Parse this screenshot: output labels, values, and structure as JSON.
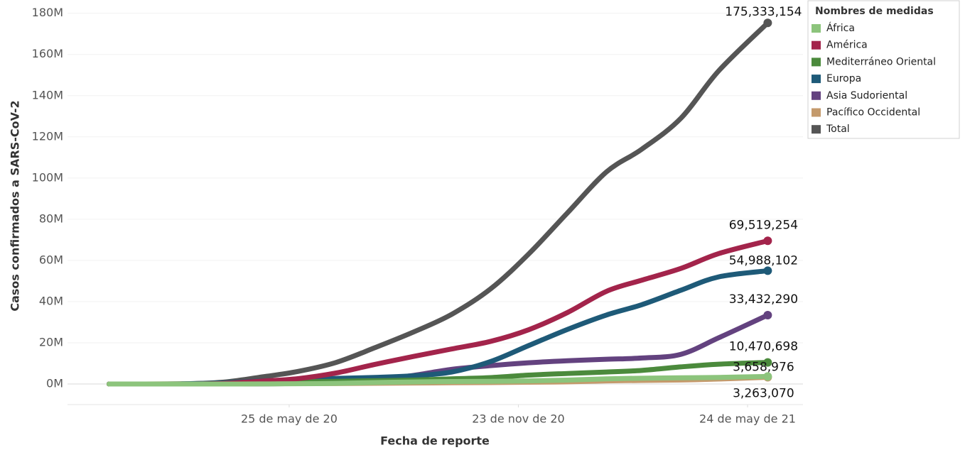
{
  "chart_data": {
    "type": "line",
    "y_label": "Casos confirmados a SARS-CoV-2",
    "x_label": "Fecha de reporte",
    "legend_title": "Nombres de medidas",
    "legend": "top-right",
    "grid": true,
    "x": [
      "2020-01-03",
      "2020-02-01",
      "2020-03-01",
      "2020-04-01",
      "2020-05-01",
      "2020-06-01",
      "2020-07-01",
      "2020-08-01",
      "2020-09-01",
      "2020-10-01",
      "2020-11-01",
      "2020-12-01",
      "2021-01-01",
      "2021-02-01",
      "2021-03-01",
      "2021-04-01",
      "2021-05-01",
      "2021-06-09"
    ],
    "xlim": [
      "2019-12-01",
      "2021-07-07"
    ],
    "xticks": [
      {
        "value": "2020-05-25",
        "label": "25 de may de 20"
      },
      {
        "value": "2020-11-23",
        "label": "23 de nov de 20"
      },
      {
        "value": "2021-05-24",
        "label": "24 de may de 21"
      }
    ],
    "ylim": [
      -10000000,
      183000000
    ],
    "yticks": [
      {
        "value": 0,
        "label": "0M"
      },
      {
        "value": 20000000,
        "label": "20M"
      },
      {
        "value": 40000000,
        "label": "40M"
      },
      {
        "value": 60000000,
        "label": "60M"
      },
      {
        "value": 80000000,
        "label": "80M"
      },
      {
        "value": 100000000,
        "label": "100M"
      },
      {
        "value": 120000000,
        "label": "120M"
      },
      {
        "value": 140000000,
        "label": "140M"
      },
      {
        "value": 160000000,
        "label": "160M"
      },
      {
        "value": 180000000,
        "label": "180M"
      }
    ],
    "series": [
      {
        "name": "África",
        "color": "#8cc47c",
        "values": [
          0,
          0,
          0,
          4000,
          30000,
          110000,
          300000,
          700000,
          1000000,
          1200000,
          1300000,
          1500000,
          1900000,
          2500000,
          2800000,
          3000000,
          3200000,
          3658976
        ],
        "value_labels": [
          null,
          null,
          null,
          null,
          null,
          null,
          null,
          null,
          null,
          null,
          null,
          null,
          null,
          null,
          null,
          null,
          null,
          "3,658,976"
        ]
      },
      {
        "name": "América",
        "color": "#a3244b",
        "values": [
          0,
          0,
          0,
          200000,
          1300000,
          2600000,
          5300000,
          9500000,
          13400000,
          17000000,
          20700000,
          26300000,
          34700000,
          45000000,
          50400000,
          56100000,
          63300000,
          69519254
        ],
        "value_labels": [
          null,
          null,
          null,
          null,
          null,
          null,
          null,
          null,
          null,
          null,
          null,
          null,
          null,
          null,
          null,
          null,
          null,
          "69,519,254"
        ]
      },
      {
        "name": "Mediterráneo Oriental",
        "color": "#4b8a3c",
        "values": [
          0,
          0,
          10000,
          70000,
          500000,
          1000000,
          1300000,
          1600000,
          1900000,
          2500000,
          3100000,
          4300000,
          5100000,
          5800000,
          6600000,
          8300000,
          9600000,
          10470698
        ],
        "value_labels": [
          null,
          null,
          null,
          null,
          null,
          null,
          null,
          null,
          null,
          null,
          null,
          null,
          null,
          null,
          null,
          null,
          null,
          "10,470,698"
        ]
      },
      {
        "name": "Europa",
        "color": "#1e5a78",
        "values": [
          0,
          0,
          60000,
          460000,
          1400000,
          2100000,
          2700000,
          3200000,
          4000000,
          5800000,
          10900000,
          18600000,
          26500000,
          33500000,
          38500000,
          45500000,
          52000000,
          54988102
        ],
        "value_labels": [
          null,
          null,
          null,
          null,
          null,
          null,
          null,
          null,
          null,
          null,
          null,
          null,
          null,
          null,
          null,
          null,
          null,
          "54,988,102"
        ]
      },
      {
        "name": "Asia Sudoriental",
        "color": "#63427f",
        "values": [
          0,
          0,
          0,
          5000,
          50000,
          250000,
          700000,
          2000000,
          4200000,
          7100000,
          8900000,
          10300000,
          11300000,
          12000000,
          12600000,
          14400000,
          22400000,
          33432290
        ],
        "value_labels": [
          null,
          null,
          null,
          null,
          null,
          null,
          null,
          null,
          null,
          null,
          null,
          null,
          null,
          null,
          null,
          null,
          null,
          "33,432,290"
        ]
      },
      {
        "name": "Pacífico Occidental",
        "color": "#c49a6c",
        "values": [
          10000,
          12000,
          90000,
          120000,
          160000,
          180000,
          230000,
          330000,
          470000,
          590000,
          700000,
          850000,
          1050000,
          1500000,
          1700000,
          1950000,
          2400000,
          3263070
        ],
        "value_labels": [
          null,
          null,
          null,
          null,
          null,
          null,
          null,
          null,
          null,
          null,
          null,
          null,
          null,
          null,
          null,
          null,
          null,
          "3,263,070"
        ]
      },
      {
        "name": "Total",
        "color": "#555555",
        "values": [
          10000,
          12000,
          90000,
          800000,
          3200000,
          6100000,
          10400000,
          17600000,
          25300000,
          33800000,
          46200000,
          63000000,
          83100000,
          103000000,
          114000000,
          129000000,
          152000000,
          175333154
        ],
        "value_labels": [
          null,
          null,
          null,
          null,
          null,
          null,
          null,
          null,
          null,
          null,
          null,
          null,
          null,
          null,
          null,
          null,
          null,
          "175,333,154"
        ]
      }
    ]
  }
}
